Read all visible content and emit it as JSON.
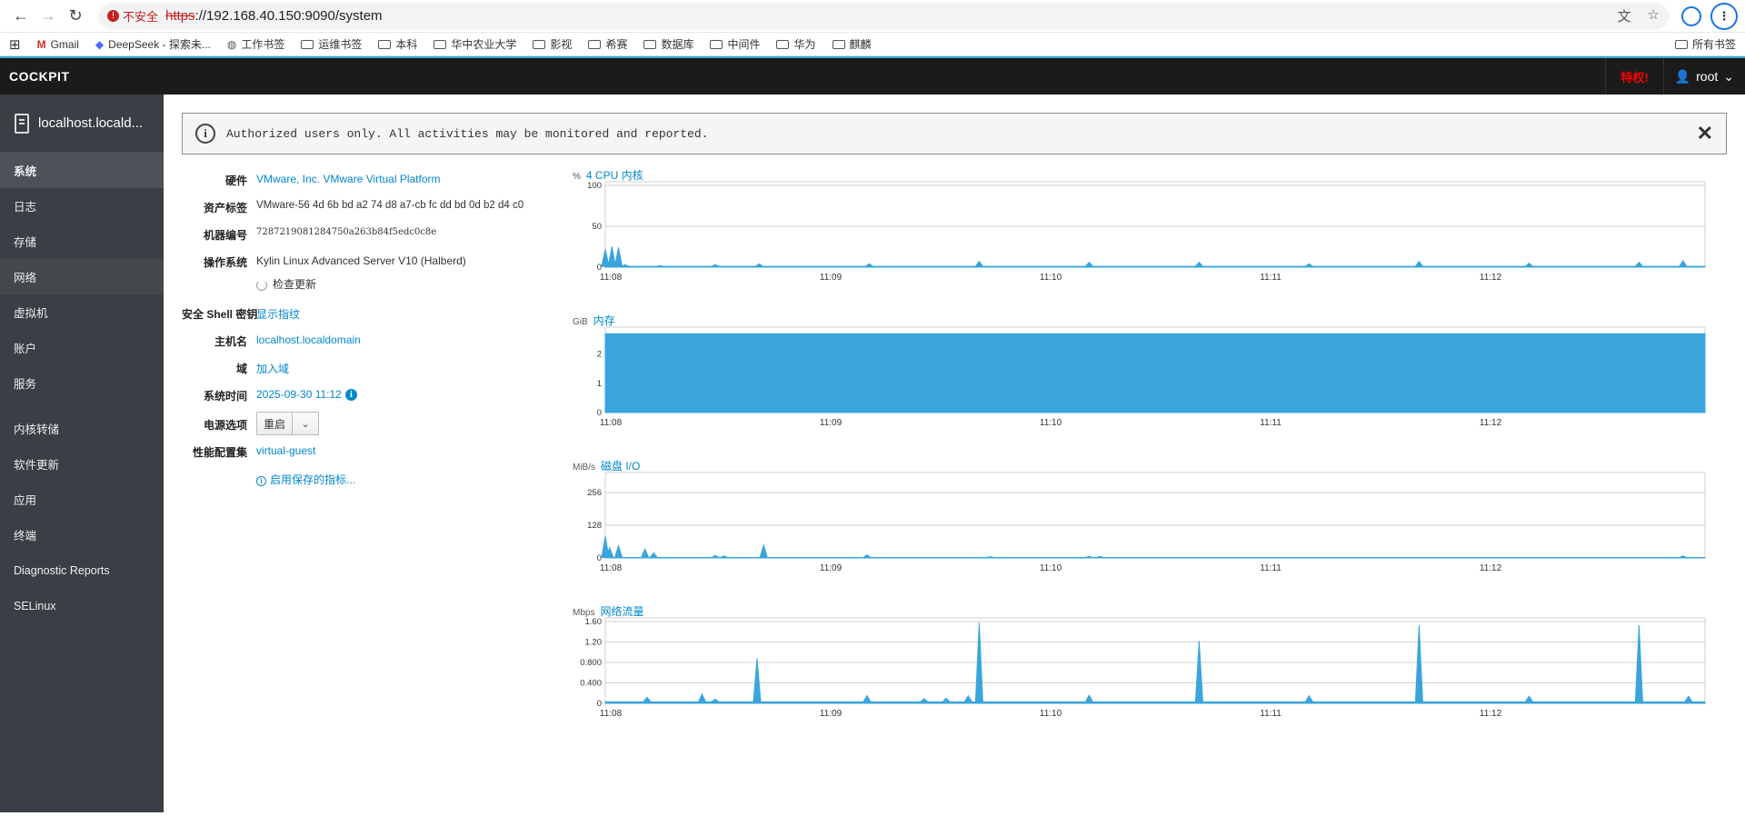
{
  "browser": {
    "insecure_label": "不安全",
    "url_scheme": "https",
    "url_rest": "://192.168.40.150:9090/system"
  },
  "bookmarks": [
    {
      "label": "Gmail",
      "icon": "gmail-icon"
    },
    {
      "label": "DeepSeek - 探索未...",
      "icon": "deepseek-icon"
    },
    {
      "label": "工作书签",
      "icon": "globe-icon"
    },
    {
      "label": "运维书签",
      "icon": "folder-icon"
    },
    {
      "label": "本科",
      "icon": "folder-icon"
    },
    {
      "label": "华中农业大学",
      "icon": "folder-icon"
    },
    {
      "label": "影视",
      "icon": "folder-icon"
    },
    {
      "label": "希赛",
      "icon": "folder-icon"
    },
    {
      "label": "数据库",
      "icon": "folder-icon"
    },
    {
      "label": "中间件",
      "icon": "folder-icon"
    },
    {
      "label": "华为",
      "icon": "folder-icon"
    },
    {
      "label": "麒麟",
      "icon": "folder-icon"
    }
  ],
  "bookmarks_all": "所有书签",
  "header": {
    "brand": "COCKPIT",
    "privileged": "特权!",
    "user": "root"
  },
  "sidebar": {
    "host": "localhost.locald...",
    "items": [
      {
        "label": "系统",
        "active": true
      },
      {
        "label": "日志"
      },
      {
        "label": "存储"
      },
      {
        "label": "网络",
        "hover": true
      },
      {
        "label": "虚拟机"
      },
      {
        "label": "账户"
      },
      {
        "label": "服务"
      },
      {
        "label": "内核转储",
        "gap": true
      },
      {
        "label": "软件更新"
      },
      {
        "label": "应用"
      },
      {
        "label": "终端"
      },
      {
        "label": "Diagnostic Reports"
      },
      {
        "label": "SELinux"
      }
    ]
  },
  "alert": {
    "message": "Authorized users only. All activities may be monitored and reported."
  },
  "info": {
    "hardware_label": "硬件",
    "hardware_value": "VMware, Inc. VMware Virtual Platform",
    "asset_label": "资产标签",
    "asset_value": "VMware-56 4d 6b bd a2 74 d8 a7-cb fc dd bd 0d b2 d4 c0",
    "machine_label": "机器编号",
    "machine_value": "7287219081284750a263b84f5edc0c8e",
    "os_label": "操作系统",
    "os_value": "Kylin Linux Advanced Server V10 (Halberd)",
    "check_updates": "检查更新",
    "ssh_label": "安全 Shell 密钥",
    "ssh_value": "显示指纹",
    "hostname_label": "主机名",
    "hostname_value": "localhost.localdomain",
    "domain_label": "域",
    "domain_value": "加入域",
    "time_label": "系统时间",
    "time_value": "2025-09-30 11:12",
    "power_label": "电源选项",
    "power_value": "重启",
    "profile_label": "性能配置集",
    "profile_value": "virtual-guest",
    "metrics_link": "启用保存的指标..."
  },
  "charts_ui": {
    "accent": "#39a5dc"
  },
  "chart_data": [
    {
      "type": "area",
      "title": "4 CPU 内核",
      "unit": "%",
      "x_ticks": [
        "11:08",
        "11:09",
        "11:10",
        "11:11",
        "11:12"
      ],
      "y_ticks": [
        "0",
        "50",
        "100"
      ],
      "ylim": [
        0,
        100
      ],
      "spikes": [
        [
          0.0,
          22
        ],
        [
          0.002,
          8
        ],
        [
          0.006,
          25
        ],
        [
          0.012,
          24
        ],
        [
          0.018,
          3
        ],
        [
          0.05,
          2
        ],
        [
          0.1,
          3
        ],
        [
          0.14,
          4
        ],
        [
          0.24,
          4
        ],
        [
          0.34,
          7
        ],
        [
          0.44,
          6
        ],
        [
          0.54,
          6
        ],
        [
          0.64,
          4
        ],
        [
          0.74,
          7
        ],
        [
          0.84,
          5
        ],
        [
          0.94,
          6
        ],
        [
          0.98,
          8
        ]
      ],
      "baseline": 1
    },
    {
      "type": "area",
      "title": "内存",
      "unit": "GiB",
      "x_ticks": [
        "11:08",
        "11:09",
        "11:10",
        "11:11",
        "11:12"
      ],
      "y_ticks": [
        "0",
        "1",
        "2"
      ],
      "ylim": [
        0,
        2.8
      ],
      "constant": 2.7
    },
    {
      "type": "area",
      "title": "磁盘 I/O",
      "unit": "MiB/s",
      "x_ticks": [
        "11:08",
        "11:09",
        "11:10",
        "11:11",
        "11:12"
      ],
      "y_ticks": [
        "0",
        "128",
        "256"
      ],
      "ylim": [
        0,
        320
      ],
      "spikes": [
        [
          0.0,
          85
        ],
        [
          0.004,
          40
        ],
        [
          0.012,
          48
        ],
        [
          0.036,
          35
        ],
        [
          0.044,
          20
        ],
        [
          0.1,
          10
        ],
        [
          0.108,
          8
        ],
        [
          0.144,
          50
        ],
        [
          0.238,
          12
        ],
        [
          0.35,
          5
        ],
        [
          0.44,
          6
        ],
        [
          0.45,
          6
        ],
        [
          0.98,
          8
        ]
      ],
      "baseline": 2
    },
    {
      "type": "area",
      "title": "网络流量",
      "unit": "Mbps",
      "x_ticks": [
        "11:08",
        "11:09",
        "11:10",
        "11:11",
        "11:12"
      ],
      "y_ticks": [
        "0",
        "0.400",
        "0.800",
        "1.20",
        "1.60"
      ],
      "ylim": [
        0,
        1.6
      ],
      "spikes": [
        [
          0.038,
          0.12
        ],
        [
          0.088,
          0.18
        ],
        [
          0.1,
          0.08
        ],
        [
          0.138,
          0.88
        ],
        [
          0.238,
          0.15
        ],
        [
          0.29,
          0.09
        ],
        [
          0.31,
          0.1
        ],
        [
          0.33,
          0.15
        ],
        [
          0.34,
          1.58
        ],
        [
          0.44,
          0.16
        ],
        [
          0.54,
          1.22
        ],
        [
          0.64,
          0.15
        ],
        [
          0.74,
          1.53
        ],
        [
          0.84,
          0.14
        ],
        [
          0.94,
          1.53
        ],
        [
          0.985,
          0.14
        ]
      ],
      "baseline": 0.03
    }
  ]
}
